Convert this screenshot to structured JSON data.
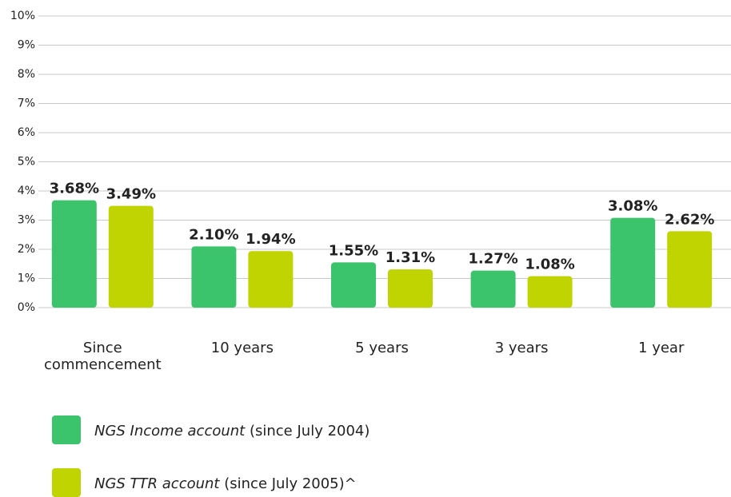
{
  "chart_data": {
    "type": "bar",
    "categories": [
      "Since commencement",
      "10 years",
      "5 years",
      "3 years",
      "1 year"
    ],
    "series": [
      {
        "name": "NGS Income account",
        "note": "(since July 2004)",
        "color": "#3cc46c",
        "values": [
          3.68,
          2.1,
          1.55,
          1.27,
          3.08
        ],
        "value_labels": [
          "3.68%",
          "2.10%",
          "1.55%",
          "1.27%",
          "3.08%"
        ]
      },
      {
        "name": "NGS TTR account",
        "note": "(since July 2005)^",
        "color": "#bfd400",
        "values": [
          3.49,
          1.94,
          1.31,
          1.08,
          2.62
        ],
        "value_labels": [
          "3.49%",
          "1.94%",
          "1.31%",
          "1.08%",
          "2.62%"
        ]
      }
    ],
    "ylim": [
      0,
      10
    ],
    "yticks": [
      {
        "value": 0,
        "label": "0%"
      },
      {
        "value": 1,
        "label": "1%"
      },
      {
        "value": 2,
        "label": "2%"
      },
      {
        "value": 3,
        "label": "3%"
      },
      {
        "value": 4,
        "label": "4%"
      },
      {
        "value": 5,
        "label": "5%"
      },
      {
        "value": 6,
        "label": "6%"
      },
      {
        "value": 7,
        "label": "7%"
      },
      {
        "value": 8,
        "label": "8%"
      },
      {
        "value": 9,
        "label": "9%"
      },
      {
        "value": 10,
        "label": "10%"
      }
    ],
    "grid": true
  }
}
